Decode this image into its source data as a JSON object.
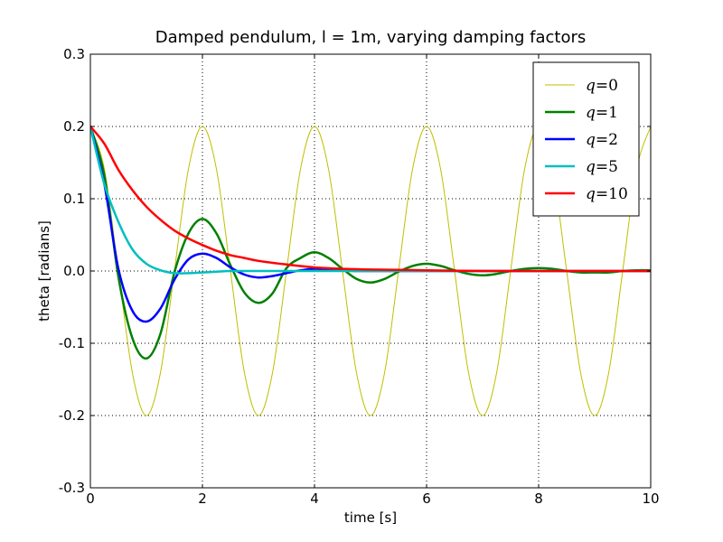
{
  "chart_data": {
    "type": "line",
    "title": "Damped pendulum, l = 1m, varying damping factors",
    "xlabel": "time [s]",
    "ylabel": "theta [radians]",
    "xlim": [
      0,
      10
    ],
    "ylim": [
      -0.3,
      0.3
    ],
    "grid": true,
    "legend_position": "top-right",
    "x_ticks": [
      0,
      2,
      4,
      6,
      8,
      10
    ],
    "x_tick_labels": [
      "0",
      "2",
      "4",
      "6",
      "8",
      "10"
    ],
    "y_ticks": [
      -0.3,
      -0.2,
      -0.1,
      0.0,
      0.1,
      0.2,
      0.3
    ],
    "y_tick_labels": [
      "-0.3",
      "-0.2",
      "-0.1",
      "0.0",
      "0.1",
      "0.2",
      "0.3"
    ],
    "series": [
      {
        "name": "q=0",
        "label_var": "q",
        "label_val": "0",
        "color": "#bfbf00",
        "line_width": "thin",
        "x": [
          0,
          0.25,
          0.5,
          0.75,
          1,
          1.25,
          1.5,
          1.75,
          2,
          2.25,
          2.5,
          2.75,
          3,
          3.25,
          3.5,
          3.75,
          4,
          4.25,
          4.5,
          4.75,
          5,
          5.25,
          5.5,
          5.75,
          6,
          6.25,
          6.5,
          6.75,
          7,
          7.25,
          7.5,
          7.75,
          8,
          8.25,
          8.5,
          8.75,
          9,
          9.25,
          9.5,
          9.75,
          10
        ],
        "y": [
          0.2,
          0.141,
          0,
          -0.141,
          -0.2,
          -0.141,
          0,
          0.141,
          0.2,
          0.141,
          0,
          -0.141,
          -0.2,
          -0.141,
          0,
          0.141,
          0.2,
          0.141,
          0,
          -0.141,
          -0.2,
          -0.141,
          0,
          0.141,
          0.2,
          0.141,
          0,
          -0.141,
          -0.2,
          -0.141,
          0,
          0.141,
          0.2,
          0.141,
          0,
          -0.141,
          -0.2,
          -0.141,
          0,
          0.141,
          0.2
        ]
      },
      {
        "name": "q=1",
        "label_var": "q",
        "label_val": "1",
        "color": "#008000",
        "line_width": "thick",
        "x": [
          0,
          0.25,
          0.5,
          0.75,
          1,
          1.25,
          1.5,
          1.75,
          2,
          2.25,
          2.5,
          2.75,
          3,
          3.25,
          3.5,
          3.75,
          4,
          4.25,
          4.5,
          4.75,
          5,
          5.25,
          5.5,
          5.75,
          6,
          6.25,
          6.5,
          6.75,
          7,
          7.25,
          7.5,
          7.75,
          8,
          8.25,
          8.5,
          8.75,
          9,
          9.25,
          9.5,
          9.75,
          10
        ],
        "y": [
          0.2,
          0.132,
          -0.008,
          -0.093,
          -0.121,
          -0.087,
          -0.002,
          0.052,
          0.072,
          0.052,
          0.008,
          -0.03,
          -0.044,
          -0.031,
          0.004,
          0.018,
          0.026,
          0.018,
          0.003,
          -0.011,
          -0.016,
          -0.011,
          -0.001,
          0.007,
          0.01,
          0.007,
          0.001,
          -0.004,
          -0.006,
          -0.004,
          0,
          0.003,
          0.004,
          0.003,
          0,
          -0.002,
          -0.002,
          -0.002,
          0,
          0.001,
          0.001
        ]
      },
      {
        "name": "q=2",
        "label_var": "q",
        "label_val": "2",
        "color": "#0000ff",
        "line_width": "thick",
        "x": [
          0,
          0.25,
          0.5,
          0.75,
          1,
          1.25,
          1.5,
          1.75,
          2,
          2.25,
          2.5,
          2.75,
          3,
          3.25,
          3.5,
          3.75,
          4,
          4.25,
          4.5,
          4.75,
          5,
          5.5,
          6,
          7,
          8,
          9,
          10
        ],
        "y": [
          0.2,
          0.12,
          0.003,
          -0.055,
          -0.07,
          -0.052,
          -0.012,
          0.016,
          0.024,
          0.018,
          0.005,
          -0.005,
          -0.009,
          -0.007,
          -0.003,
          0.001,
          0.003,
          0.002,
          0.001,
          0,
          0,
          0,
          0,
          0,
          0,
          0,
          0
        ]
      },
      {
        "name": "q=5",
        "label_var": "q",
        "label_val": "5",
        "color": "#00bfbf",
        "line_width": "thick",
        "x": [
          0,
          0.25,
          0.5,
          0.75,
          1,
          1.25,
          1.5,
          1.75,
          2,
          2.25,
          2.5,
          3,
          3.5,
          4,
          5,
          6,
          7,
          8,
          9,
          10
        ],
        "y": [
          0.2,
          0.12,
          0.068,
          0.03,
          0.01,
          0.001,
          -0.003,
          -0.003,
          -0.002,
          -0.001,
          0,
          0,
          0,
          0,
          0,
          0,
          0,
          0,
          0,
          0
        ]
      },
      {
        "name": "q=10",
        "label_var": "q",
        "label_val": "10",
        "color": "#ff0000",
        "line_width": "thick",
        "x": [
          0,
          0.25,
          0.5,
          0.75,
          1,
          1.25,
          1.5,
          1.75,
          2,
          2.25,
          2.5,
          2.75,
          3,
          3.5,
          4,
          4.5,
          5,
          6,
          7,
          8,
          9,
          10
        ],
        "y": [
          0.2,
          0.176,
          0.14,
          0.112,
          0.089,
          0.071,
          0.056,
          0.045,
          0.036,
          0.028,
          0.022,
          0.018,
          0.014,
          0.009,
          0.005,
          0.003,
          0.002,
          0.001,
          0,
          0,
          0,
          0
        ]
      }
    ]
  }
}
